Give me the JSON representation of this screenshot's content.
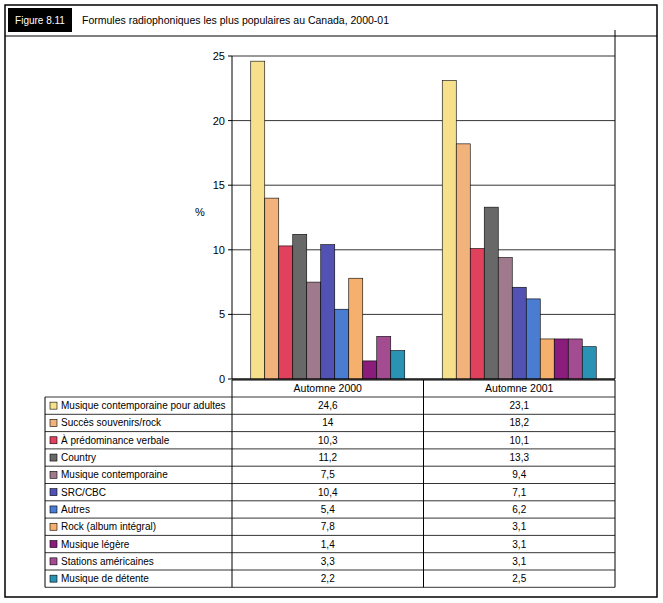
{
  "chart_data": {
    "type": "bar",
    "figure": "Figure 8.11",
    "title": "Formules radiophoniques les plus populaires au Canada, 2000-01",
    "y_label": "%",
    "categories": [
      "Automne 2000",
      "Automne 2001"
    ],
    "series": [
      {
        "name": "Musique contemporaine pour adultes",
        "color": "#f6e08c",
        "values": [
          24.6,
          23.1
        ],
        "value_labels": [
          "24,6",
          "23,1"
        ]
      },
      {
        "name": "Succès souvenirs/rock",
        "color": "#f2b27c",
        "values": [
          14,
          18.2
        ],
        "value_labels": [
          "14",
          "18,2"
        ]
      },
      {
        "name": "À prédominance verbale",
        "color": "#e0425e",
        "values": [
          10.3,
          10.1
        ],
        "value_labels": [
          "10,3",
          "10,1"
        ]
      },
      {
        "name": "Country",
        "color": "#686868",
        "values": [
          11.2,
          13.3
        ],
        "value_labels": [
          "11,2",
          "13,3"
        ]
      },
      {
        "name": "Musique contemporaine",
        "color": "#9e7a8c",
        "values": [
          7.5,
          9.4
        ],
        "value_labels": [
          "7,5",
          "9,4"
        ]
      },
      {
        "name": "SRC/CBC",
        "color": "#5252b4",
        "values": [
          10.4,
          7.1
        ],
        "value_labels": [
          "10,4",
          "7,1"
        ]
      },
      {
        "name": "Autres",
        "color": "#4a7cd2",
        "values": [
          5.4,
          6.2
        ],
        "value_labels": [
          "5,4",
          "6,2"
        ]
      },
      {
        "name": "Rock (album intégral)",
        "color": "#f4b06c",
        "values": [
          7.8,
          3.1
        ],
        "value_labels": [
          "7,8",
          "3,1"
        ]
      },
      {
        "name": "Musique légère",
        "color": "#8a1c7c",
        "values": [
          1.4,
          3.1
        ],
        "value_labels": [
          "1,4",
          "3,1"
        ]
      },
      {
        "name": "Stations américaines",
        "color": "#a44c92",
        "values": [
          3.3,
          3.1
        ],
        "value_labels": [
          "3,3",
          "3,1"
        ]
      },
      {
        "name": "Musique de détente",
        "color": "#2a92b2",
        "values": [
          2.2,
          2.5
        ],
        "value_labels": [
          "2,2",
          "2,5"
        ]
      }
    ],
    "ylim": [
      0,
      25
    ],
    "yticks": [
      0,
      5,
      10,
      15,
      20,
      25
    ],
    "grid": true,
    "legend": "bottom"
  }
}
